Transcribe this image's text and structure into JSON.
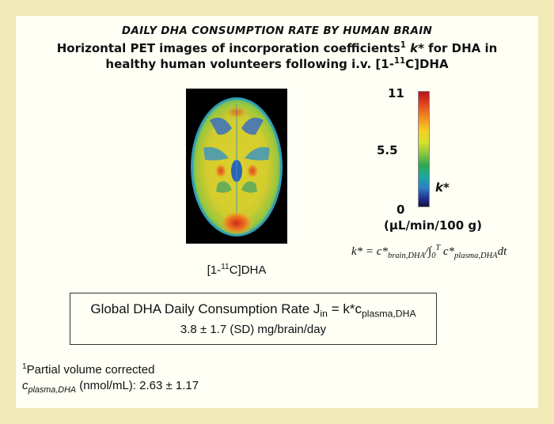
{
  "header": {
    "title": "DAILY DHA CONSUMPTION RATE BY HUMAN BRAIN",
    "line2_pre": "Horizontal PET images of incorporation coefficients",
    "line2_sup": "1",
    "line2_k": "k*",
    "line2_post": "for DHA in",
    "line3_pre": "healthy human volunteers following i.v. [1-",
    "line3_sup": "11",
    "line3_post": "C]DHA"
  },
  "image_label": {
    "pre": "[1-",
    "sup": "11",
    "post": "C]DHA"
  },
  "colorbar": {
    "max_label": "11",
    "mid_label": "5.5",
    "min_label": "0",
    "variable_label": "k*",
    "unit_label": "(µL/min/100 g)",
    "colors": [
      "#b2161b",
      "#f28a1f",
      "#f6cf1f",
      "#8cc63f",
      "#2fa84f",
      "#2a7fc4",
      "#121040"
    ]
  },
  "formula": {
    "lhs": "k* = c*",
    "sub1": "brain,DHA",
    "slash_int": "/∫",
    "int_lower": "0",
    "int_upper": "T",
    "c2": "c*",
    "sub2": "plasma,DHA",
    "dt": "dt"
  },
  "result_box": {
    "line1_pre": "Global DHA Daily Consumption Rate J",
    "line1_sub1": "in",
    "line1_mid": "= k*c",
    "line1_sub2": "plasma,DHA",
    "line2": "3.8 ± 1.7 (SD) mg/brain/day"
  },
  "footnotes": {
    "f1_sup": "1",
    "f1_text": "Partial volume corrected",
    "f2_c": "c",
    "f2_sub": "plasma,DHA",
    "f2_text": " (nmol/mL): 2.63 ± 1.17"
  }
}
